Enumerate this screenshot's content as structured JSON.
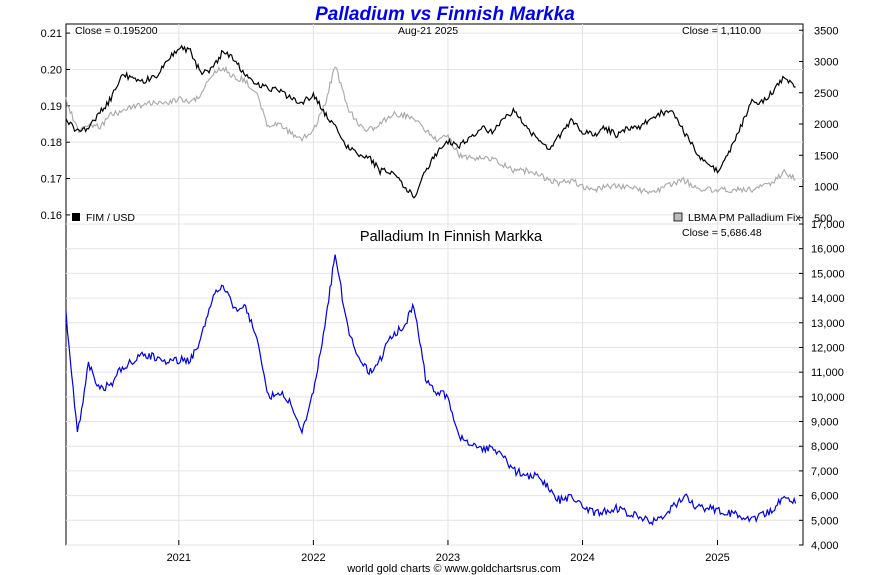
{
  "title": "Palladium vs Finnish Markka",
  "footer": "world gold charts © www.goldchartsrus.com",
  "colors": {
    "title": "#0000ee",
    "fim_usd": "#000000",
    "lbma": "#a8a8a8",
    "pd_fim": "#0000dd"
  },
  "top_panel": {
    "close_left": "Close = 0.195200",
    "date": "Aug-21  2025",
    "close_right": "Close = 1,110.00",
    "legend_left": "FIM / USD",
    "legend_right": "LBMA PM Palladium Fix",
    "left_ticks": [
      "0.21",
      "0.20",
      "0.19",
      "0.18",
      "0.17",
      "0.16"
    ],
    "right_ticks": [
      "3500",
      "3000",
      "2500",
      "2000",
      "1500",
      "1000",
      "500"
    ]
  },
  "bottom_panel": {
    "subtitle": "Palladium In Finnish Markka",
    "close": "Close = 5,686.48",
    "right_ticks": [
      "17,000",
      "16,000",
      "15,000",
      "14,000",
      "13,000",
      "12,000",
      "11,000",
      "10,000",
      "9,000",
      "8,000",
      "7,000",
      "6,000",
      "5,000",
      "4,000"
    ]
  },
  "x_ticks": [
    "2021",
    "2022",
    "2023",
    "2024",
    "2025"
  ],
  "chart_data": [
    {
      "type": "line",
      "title": "Palladium vs Finnish Markka",
      "series": [
        {
          "name": "FIM / USD",
          "axis": "left",
          "ylim": [
            0.1575,
            0.2125
          ],
          "x": [
            "2020-03",
            "2020-04",
            "2020-05",
            "2020-06",
            "2020-07",
            "2020-08",
            "2020-09",
            "2020-10",
            "2020-11",
            "2020-12",
            "2021-01",
            "2021-02",
            "2021-03",
            "2021-04",
            "2021-05",
            "2021-06",
            "2021-07",
            "2021-08",
            "2021-09",
            "2021-10",
            "2021-11",
            "2021-12",
            "2022-01",
            "2022-02",
            "2022-03",
            "2022-04",
            "2022-05",
            "2022-06",
            "2022-07",
            "2022-08",
            "2022-09",
            "2022-10",
            "2022-11",
            "2022-12",
            "2023-01",
            "2023-02",
            "2023-03",
            "2023-04",
            "2023-05",
            "2023-06",
            "2023-07",
            "2023-08",
            "2023-09",
            "2023-10",
            "2023-11",
            "2023-12",
            "2024-01",
            "2024-02",
            "2024-03",
            "2024-04",
            "2024-05",
            "2024-06",
            "2024-07",
            "2024-08",
            "2024-09",
            "2024-10",
            "2024-11",
            "2024-12",
            "2025-01",
            "2025-02",
            "2025-03",
            "2025-04",
            "2025-05",
            "2025-06",
            "2025-07",
            "2025-08"
          ],
          "values": [
            0.186,
            0.183,
            0.184,
            0.188,
            0.192,
            0.199,
            0.197,
            0.197,
            0.198,
            0.203,
            0.206,
            0.205,
            0.199,
            0.2,
            0.205,
            0.203,
            0.198,
            0.196,
            0.195,
            0.194,
            0.192,
            0.191,
            0.193,
            0.188,
            0.184,
            0.179,
            0.177,
            0.176,
            0.172,
            0.172,
            0.168,
            0.165,
            0.172,
            0.177,
            0.18,
            0.179,
            0.181,
            0.184,
            0.183,
            0.186,
            0.189,
            0.184,
            0.181,
            0.178,
            0.182,
            0.186,
            0.183,
            0.182,
            0.184,
            0.182,
            0.184,
            0.184,
            0.186,
            0.188,
            0.188,
            0.183,
            0.178,
            0.174,
            0.172,
            0.177,
            0.183,
            0.191,
            0.191,
            0.194,
            0.198,
            0.1952
          ]
        },
        {
          "name": "LBMA PM Palladium Fix",
          "axis": "right",
          "ylim": [
            400,
            3600
          ],
          "x": [
            "2020-03",
            "2020-04",
            "2020-05",
            "2020-06",
            "2020-07",
            "2020-08",
            "2020-09",
            "2020-10",
            "2020-11",
            "2020-12",
            "2021-01",
            "2021-02",
            "2021-03",
            "2021-04",
            "2021-05",
            "2021-06",
            "2021-07",
            "2021-08",
            "2021-09",
            "2021-10",
            "2021-11",
            "2021-12",
            "2022-01",
            "2022-02",
            "2022-03",
            "2022-04",
            "2022-05",
            "2022-06",
            "2022-07",
            "2022-08",
            "2022-09",
            "2022-10",
            "2022-11",
            "2022-12",
            "2023-01",
            "2023-02",
            "2023-03",
            "2023-04",
            "2023-05",
            "2023-06",
            "2023-07",
            "2023-08",
            "2023-09",
            "2023-10",
            "2023-11",
            "2023-12",
            "2024-01",
            "2024-02",
            "2024-03",
            "2024-04",
            "2024-05",
            "2024-06",
            "2024-07",
            "2024-08",
            "2024-09",
            "2024-10",
            "2024-11",
            "2024-12",
            "2025-01",
            "2025-02",
            "2025-03",
            "2025-04",
            "2025-05",
            "2025-06",
            "2025-07",
            "2025-08"
          ],
          "values": [
            2400,
            1900,
            2000,
            1950,
            2150,
            2200,
            2300,
            2300,
            2350,
            2350,
            2400,
            2350,
            2450,
            2800,
            2900,
            2750,
            2700,
            2450,
            1950,
            2000,
            1850,
            1750,
            1900,
            2300,
            2950,
            2300,
            2000,
            1900,
            2000,
            2150,
            2150,
            2100,
            1900,
            1750,
            1800,
            1500,
            1450,
            1450,
            1450,
            1350,
            1250,
            1250,
            1200,
            1100,
            1050,
            1100,
            1000,
            950,
            1000,
            1000,
            1000,
            950,
            900,
            950,
            1050,
            1100,
            1000,
            950,
            950,
            950,
            950,
            950,
            1000,
            1050,
            1250,
            1110
          ]
        }
      ]
    },
    {
      "type": "line",
      "title": "Palladium In Finnish Markka",
      "ylim": [
        4000,
        17000
      ],
      "series": [
        {
          "x": [
            "2020-03",
            "2020-04",
            "2020-05",
            "2020-06",
            "2020-07",
            "2020-08",
            "2020-09",
            "2020-10",
            "2020-11",
            "2020-12",
            "2021-01",
            "2021-02",
            "2021-03",
            "2021-04",
            "2021-05",
            "2021-06",
            "2021-07",
            "2021-08",
            "2021-09",
            "2021-10",
            "2021-11",
            "2021-12",
            "2022-01",
            "2022-02",
            "2022-03",
            "2022-04",
            "2022-05",
            "2022-06",
            "2022-07",
            "2022-08",
            "2022-09",
            "2022-10",
            "2022-11",
            "2022-12",
            "2023-01",
            "2023-02",
            "2023-03",
            "2023-04",
            "2023-05",
            "2023-06",
            "2023-07",
            "2023-08",
            "2023-09",
            "2023-10",
            "2023-11",
            "2023-12",
            "2024-01",
            "2024-02",
            "2024-03",
            "2024-04",
            "2024-05",
            "2024-06",
            "2024-07",
            "2024-08",
            "2024-09",
            "2024-10",
            "2024-11",
            "2024-12",
            "2025-01",
            "2025-02",
            "2025-03",
            "2025-04",
            "2025-05",
            "2025-06",
            "2025-07",
            "2025-08"
          ],
          "values": [
            13400,
            8500,
            11300,
            10300,
            10500,
            11200,
            11500,
            11700,
            11600,
            11400,
            11500,
            11500,
            12300,
            14000,
            14500,
            13500,
            13600,
            12500,
            10000,
            10200,
            9700,
            8600,
            10200,
            12800,
            15800,
            13000,
            11600,
            11000,
            11500,
            12500,
            12800,
            13700,
            10800,
            10200,
            10000,
            8400,
            8000,
            7900,
            7900,
            7500,
            7000,
            6800,
            6800,
            6300,
            5800,
            6000,
            5500,
            5300,
            5400,
            5500,
            5300,
            5200,
            4900,
            5100,
            5500,
            6000,
            5600,
            5500,
            5400,
            5300,
            5200,
            5000,
            5200,
            5400,
            6100,
            5686.48
          ]
        }
      ]
    }
  ]
}
